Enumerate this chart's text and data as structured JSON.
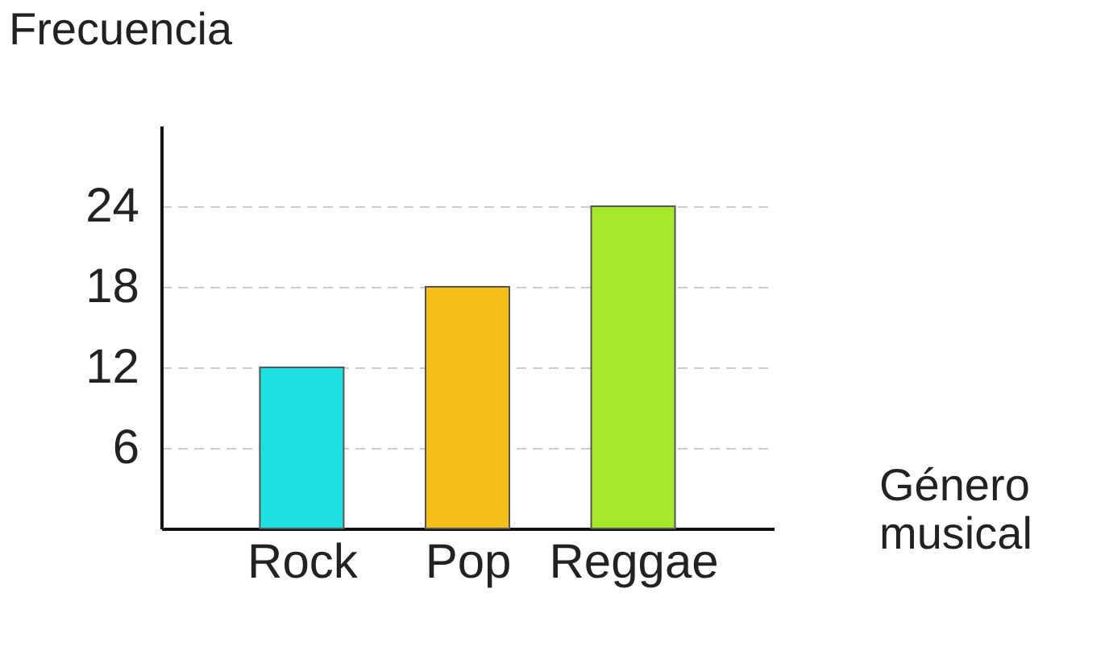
{
  "chart_data": {
    "type": "bar",
    "xlabel": "Género musical",
    "ylabel": "Frecuencia",
    "categories": [
      "Rock",
      "Pop",
      "Reggae"
    ],
    "values": [
      12,
      18,
      24
    ],
    "colors": [
      "#1ee0e0",
      "#f5bf1a",
      "#a6e82a"
    ],
    "ylim": [
      0,
      30
    ],
    "yticks": [
      6,
      12,
      18,
      24
    ],
    "grid": "y"
  }
}
